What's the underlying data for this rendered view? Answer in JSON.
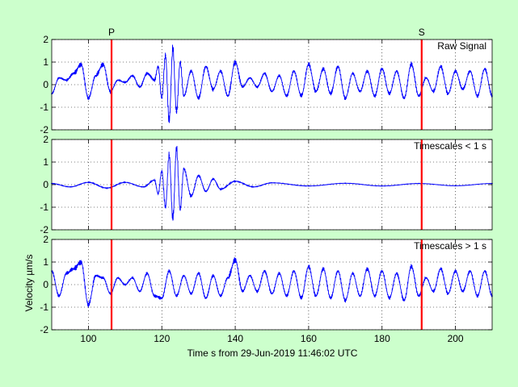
{
  "figure": {
    "background_color": "#ccffcc",
    "axes_background_color": "#ffffff",
    "signal_color": "#0000ff",
    "marker_color": "#ff0000",
    "xlabel": "Time s from 29-Jun-2019 11:46:02 UTC",
    "ylabel": "Velocity µm/s"
  },
  "chart_data": [
    {
      "type": "line",
      "panel_title": "Raw Signal",
      "x_range": [
        90,
        210
      ],
      "ylim": [
        -2,
        2
      ],
      "yticks": [
        -2,
        -1,
        0,
        1,
        2
      ],
      "xticks": [
        100,
        120,
        140,
        160,
        180,
        200
      ],
      "show_xtick_labels": false,
      "grid": true,
      "markers": [
        {
          "label": "P",
          "x": 106.3
        },
        {
          "label": "S",
          "x": 190.8
        }
      ],
      "series": [
        {
          "x": [
            90,
            92,
            94,
            96,
            98,
            100,
            102,
            104,
            106,
            108,
            110,
            112,
            114,
            116,
            118,
            119,
            120,
            121,
            122,
            123,
            124,
            125,
            126,
            128,
            130,
            132,
            134,
            136,
            138,
            140,
            142,
            144,
            146,
            148,
            150,
            152,
            154,
            156,
            158,
            160,
            162,
            164,
            166,
            168,
            170,
            172,
            174,
            176,
            178,
            180,
            182,
            184,
            186,
            188,
            190,
            192,
            194,
            196,
            198,
            200,
            202,
            204,
            206,
            208,
            210
          ],
          "values": [
            -0.4,
            0.3,
            0.2,
            0.5,
            0.9,
            -0.6,
            0.4,
            0.9,
            -0.3,
            0.2,
            0.1,
            0.4,
            -0.1,
            0.5,
            0.2,
            0.8,
            -0.6,
            1.3,
            -1.6,
            1.6,
            -1.2,
            1.0,
            -0.5,
            0.6,
            -0.6,
            0.8,
            -0.2,
            0.6,
            -0.5,
            1.0,
            -0.1,
            0.3,
            -0.1,
            0.5,
            -0.3,
            0.4,
            -0.5,
            0.6,
            -0.5,
            0.9,
            -0.3,
            0.7,
            -0.4,
            0.8,
            -0.6,
            0.5,
            -0.3,
            0.6,
            -0.5,
            0.7,
            -0.4,
            0.6,
            -0.6,
            0.9,
            -0.5,
            0.3,
            -0.3,
            0.8,
            -0.4,
            0.6,
            -0.2,
            0.6,
            -0.5,
            0.7,
            -0.5
          ]
        }
      ]
    },
    {
      "type": "line",
      "panel_title": "Timescales < 1 s",
      "x_range": [
        90,
        210
      ],
      "ylim": [
        -2,
        2
      ],
      "yticks": [
        -2,
        -1,
        0,
        1,
        2
      ],
      "xticks": [
        100,
        120,
        140,
        160,
        180,
        200
      ],
      "show_xtick_labels": false,
      "grid": true,
      "markers": [
        {
          "label": "",
          "x": 106.3
        },
        {
          "label": "",
          "x": 190.8
        }
      ],
      "series": [
        {
          "x": [
            90,
            95,
            100,
            105,
            110,
            115,
            118,
            119,
            120,
            121,
            122,
            123,
            124,
            125,
            126,
            128,
            130,
            132,
            134,
            136,
            140,
            145,
            150,
            160,
            170,
            180,
            190,
            200,
            210
          ],
          "values": [
            0.05,
            -0.1,
            0.1,
            -0.15,
            0.1,
            -0.1,
            0.2,
            -0.4,
            0.6,
            -1.0,
            1.3,
            -1.5,
            1.6,
            -1.1,
            0.7,
            -0.5,
            0.4,
            -0.3,
            0.25,
            -0.2,
            0.15,
            -0.1,
            0.08,
            -0.06,
            0.06,
            -0.06,
            0.05,
            -0.05,
            0.05
          ]
        }
      ]
    },
    {
      "type": "line",
      "panel_title": "Timescales > 1 s",
      "x_range": [
        90,
        210
      ],
      "ylim": [
        -2,
        2
      ],
      "yticks": [
        -2,
        -1,
        0,
        1,
        2
      ],
      "xticks": [
        100,
        120,
        140,
        160,
        180,
        200
      ],
      "show_xtick_labels": true,
      "grid": true,
      "markers": [
        {
          "label": "",
          "x": 106.3
        },
        {
          "label": "",
          "x": 190.8
        }
      ],
      "series": [
        {
          "x": [
            90,
            92,
            94,
            96,
            98,
            100,
            102,
            104,
            106,
            108,
            110,
            112,
            114,
            116,
            118,
            120,
            122,
            124,
            126,
            128,
            130,
            132,
            134,
            136,
            138,
            140,
            142,
            144,
            146,
            148,
            150,
            152,
            154,
            156,
            158,
            160,
            162,
            164,
            166,
            168,
            170,
            172,
            174,
            176,
            178,
            180,
            182,
            184,
            186,
            188,
            190,
            192,
            194,
            196,
            198,
            200,
            202,
            204,
            206,
            208,
            210
          ],
          "values": [
            0.6,
            -0.5,
            0.5,
            0.7,
            1.0,
            -0.9,
            0.4,
            0.3,
            -0.4,
            0.3,
            0.0,
            0.3,
            -0.3,
            0.5,
            -0.5,
            -0.6,
            0.6,
            -0.5,
            0.4,
            -0.4,
            0.5,
            -0.6,
            0.4,
            -0.5,
            0.3,
            1.1,
            -0.3,
            0.4,
            -0.3,
            0.6,
            -0.4,
            0.5,
            -0.5,
            0.6,
            -0.6,
            0.8,
            -0.5,
            0.7,
            -0.6,
            0.6,
            -0.7,
            0.5,
            -0.5,
            0.7,
            -0.5,
            0.6,
            -0.6,
            0.5,
            -0.7,
            0.8,
            -0.5,
            0.3,
            -0.3,
            0.7,
            -0.4,
            0.6,
            -0.3,
            0.6,
            -0.5,
            0.6,
            -0.5
          ]
        }
      ]
    }
  ]
}
